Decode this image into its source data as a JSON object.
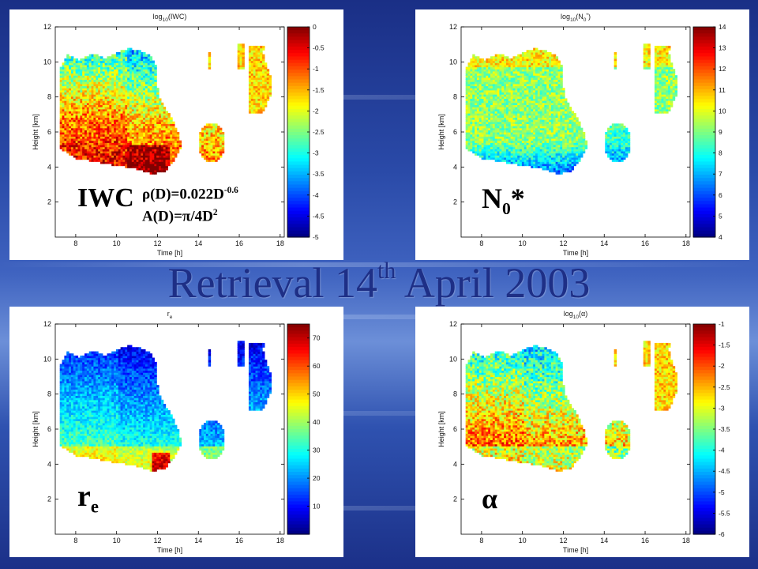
{
  "slide": {
    "title_main": "Retrieval 14",
    "title_sup": "th",
    "title_end": " April 2003"
  },
  "panels": [
    {
      "id": "iwc",
      "title_base": "log",
      "title_sub": "10",
      "title_rest": "(IWC)",
      "label_main": "IWC",
      "formula1_pre": "ρ(D)=0.022D",
      "formula1_sup": "-0.6",
      "formula2_pre": "A(D)=π/4D",
      "formula2_sup": "2"
    },
    {
      "id": "n0",
      "title_base": "log",
      "title_sub": "10",
      "title_rest": "(N",
      "title_rest_sub": "0",
      "title_rest_sup": "*",
      "title_close": ")",
      "label_main": "N",
      "label_sub": "0",
      "label_after": "*"
    },
    {
      "id": "re",
      "title_base": "r",
      "title_sub": "e",
      "label_main": "r",
      "label_sub": "e"
    },
    {
      "id": "alpha",
      "title_base": "log",
      "title_sub": "10",
      "title_rest": "(α)",
      "label_main": "α"
    }
  ],
  "chart_data": [
    {
      "type": "heatmap",
      "title": "log10(IWC)",
      "xlabel": "Time [h]",
      "ylabel": "Height [km]",
      "xlim": [
        7,
        18.2
      ],
      "ylim": [
        0,
        12
      ],
      "xticks": [
        8,
        10,
        12,
        14,
        16,
        18
      ],
      "yticks": [
        2,
        4,
        6,
        8,
        10,
        12
      ],
      "colorbar": {
        "min": -5,
        "max": 0,
        "ticks": [
          "0",
          "-0.5",
          "-1",
          "-1.5",
          "-2",
          "-2.5",
          "-3",
          "-3.5",
          "-4",
          "-4.5",
          "-5"
        ]
      },
      "grid": false
    },
    {
      "type": "heatmap",
      "title": "log10(N0*)",
      "xlabel": "Time [h]",
      "ylabel": "Height [km]",
      "xlim": [
        7,
        18.2
      ],
      "ylim": [
        0,
        12
      ],
      "xticks": [
        8,
        10,
        12,
        14,
        16,
        18
      ],
      "yticks": [
        2,
        4,
        6,
        8,
        10,
        12
      ],
      "colorbar": {
        "min": 4,
        "max": 14,
        "ticks": [
          "14",
          "13",
          "12",
          "11",
          "10",
          "9",
          "8",
          "7",
          "6",
          "5",
          "4"
        ]
      },
      "grid": false
    },
    {
      "type": "heatmap",
      "title": "re",
      "xlabel": "Time [h]",
      "ylabel": "Height [km]",
      "xlim": [
        7,
        18.2
      ],
      "ylim": [
        0,
        12
      ],
      "xticks": [
        8,
        10,
        12,
        14,
        16,
        18
      ],
      "yticks": [
        2,
        4,
        6,
        8,
        10,
        12
      ],
      "colorbar": {
        "min": 0,
        "max": 75,
        "ticks": [
          "70",
          "60",
          "50",
          "40",
          "30",
          "20",
          "10"
        ]
      },
      "grid": false
    },
    {
      "type": "heatmap",
      "title": "log10(α)",
      "xlabel": "Time [h]",
      "ylabel": "Height [km]",
      "xlim": [
        7,
        18.2
      ],
      "ylim": [
        0,
        12
      ],
      "xticks": [
        8,
        10,
        12,
        14,
        16,
        18
      ],
      "yticks": [
        2,
        4,
        6,
        8,
        10,
        12
      ],
      "colorbar": {
        "min": -6,
        "max": -1,
        "ticks": [
          "-1",
          "-1.5",
          "-2",
          "-2.5",
          "-3",
          "-3.5",
          "-4",
          "-4.5",
          "-5",
          "-5.5",
          "-6"
        ]
      },
      "grid": false
    }
  ]
}
